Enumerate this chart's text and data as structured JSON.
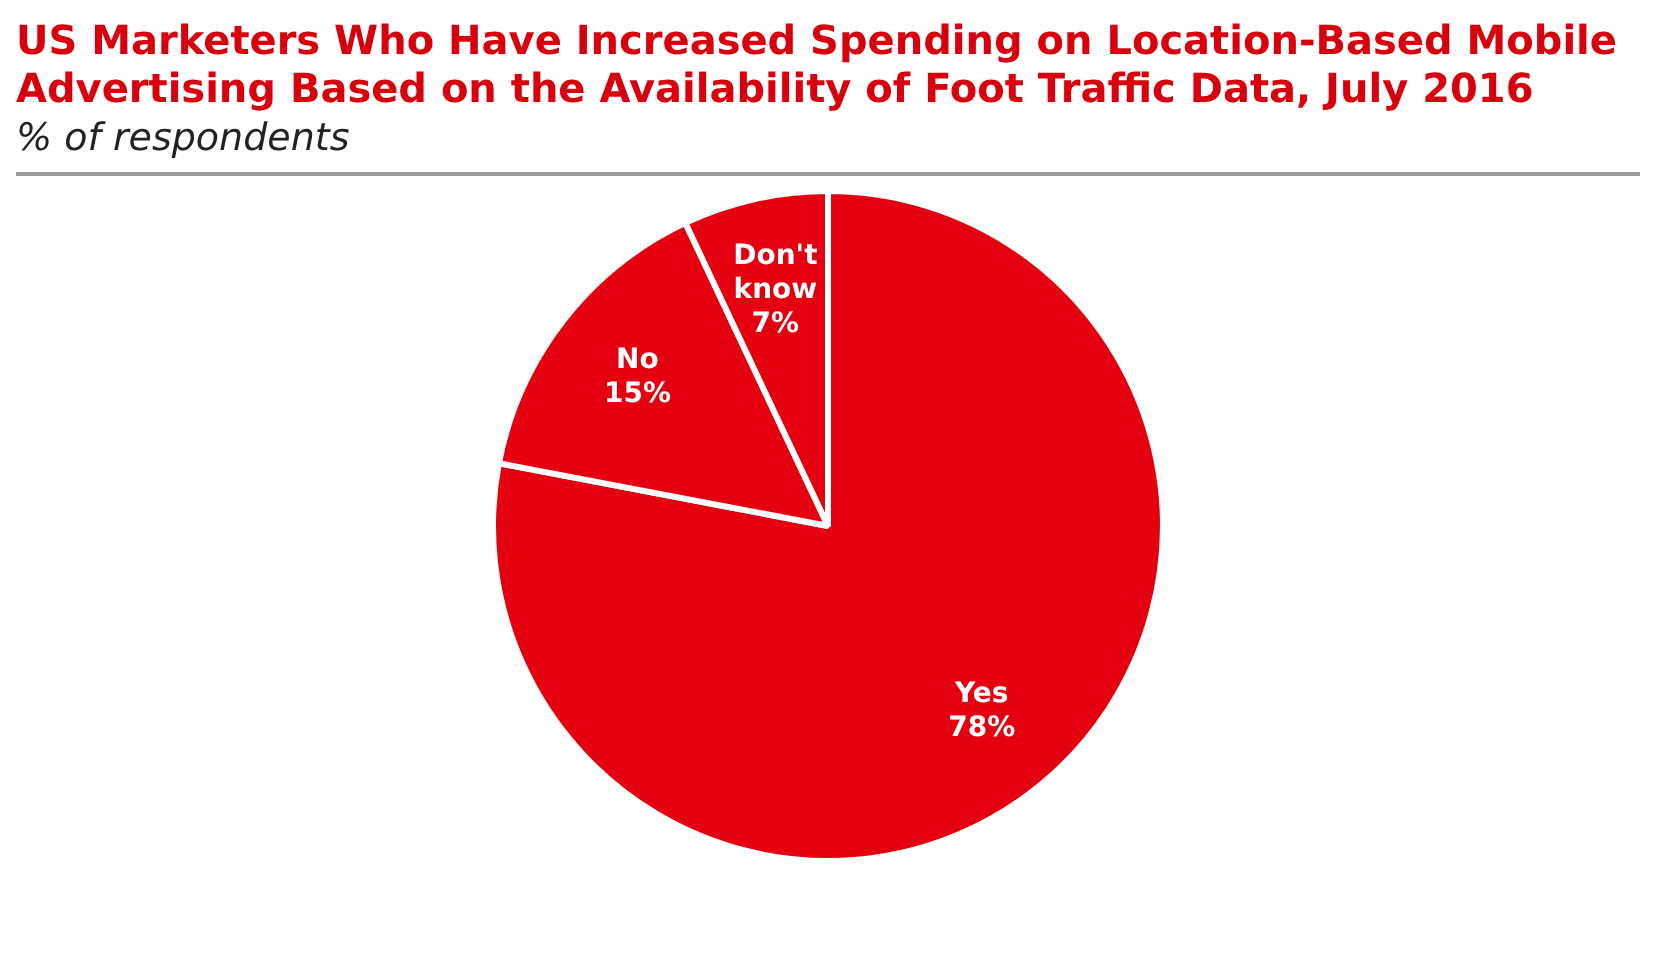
{
  "chart_data": {
    "type": "pie",
    "title": "US Marketers Who Have Increased Spending on Location-Based Mobile Advertising Based on the Availability of Foot Traffic Data, July 2016",
    "subtitle": "% of respondents",
    "categories": [
      "Yes",
      "No",
      "Don't know"
    ],
    "values": [
      78,
      15,
      7
    ],
    "colors": [
      "#e5000f",
      "#e5000f",
      "#e5000f"
    ],
    "value_labels": [
      "78%",
      "15%",
      "7%"
    ],
    "legend": false
  }
}
